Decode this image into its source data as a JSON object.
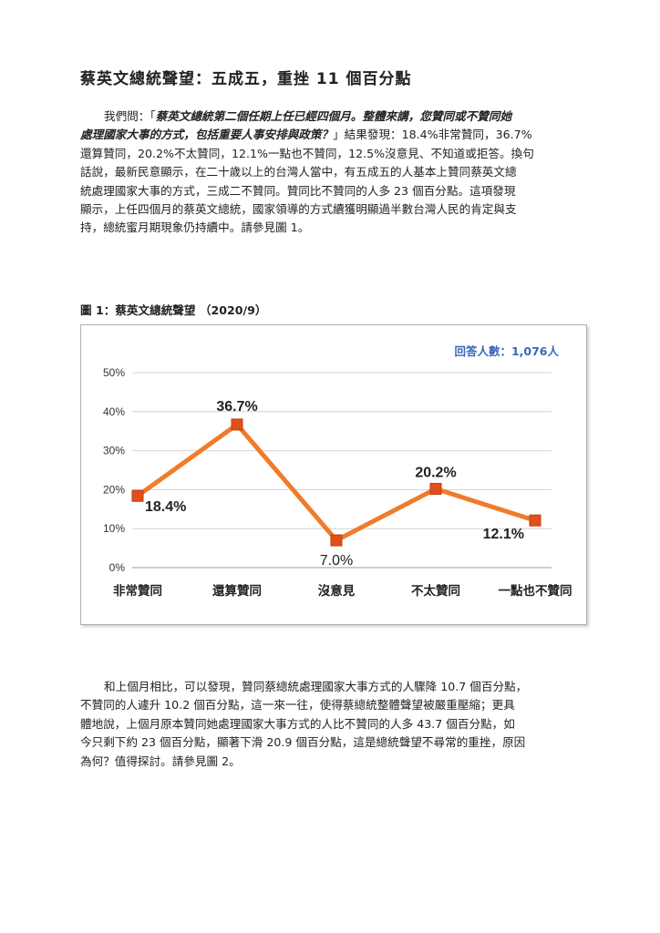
{
  "title": "蔡英文總統聲望：五成五，重挫 11 個百分點",
  "paragraph1": {
    "lead": "我們問：「",
    "question_line1": "蔡英文總統第二個任期上任已經四個月。整體來講，您贊同或不贊同她",
    "question_line2": "處理國家大事的方式，包括重要人事安排與政策？",
    "close_quote": "」結果發現：18.4%非常贊同，36.7%",
    "line3": "還算贊同，20.2%不太贊同，12.1%一點也不贊同，12.5%沒意見、不知道或拒答。換句",
    "line4": "話說，最新民意顯示，在二十歲以上的台灣人當中，有五成五的人基本上贊同蔡英文總",
    "line5": "統處理國家大事的方式，三成二不贊同。贊同比不贊同的人多 23 個百分點。這項發現",
    "line6": "顯示，上任四個月的蔡英文總統，國家領導的方式續獲明顯過半數台灣人民的肯定與支",
    "line7": "持，總統蜜月期現象仍持續中。請參見圖 1。"
  },
  "figure1": {
    "caption": "圖 1：蔡英文總統聲望 （2020/9）",
    "respondents": "回答人數：1,076人"
  },
  "paragraph2": {
    "line1": "和上個月相比，可以發現，贊同蔡總統處理國家大事方式的人驟降 10.7 個百分點，",
    "line2": "不贊同的人遽升 10.2 個百分點，這一來一往，使得蔡總統整體聲望被嚴重壓縮；更具",
    "line3": "體地說，上個月原本贊同她處理國家大事方式的人比不贊同的人多 43.7 個百分點，如",
    "line4": "今只剩下約 23 個百分點，顯著下滑 20.9 個百分點，這是總統聲望不尋常的重挫，原因",
    "line5": "為何？值得探討。請參見圖 2。"
  },
  "chart_data": {
    "type": "line",
    "categories": [
      "非常贊同",
      "還算贊同",
      "沒意見",
      "不太贊同",
      "一點也不贊同"
    ],
    "values": [
      18.4,
      36.7,
      7.0,
      20.2,
      12.1
    ],
    "labels": [
      "18.4%",
      "36.7%",
      "7.0%",
      "20.2%",
      "12.1%"
    ],
    "yticks": [
      "0%",
      "10%",
      "20%",
      "30%",
      "40%",
      "50%"
    ],
    "ylim": [
      0,
      50
    ],
    "grid": true,
    "line_color": "#f07b2a",
    "marker_color": "#e0501a"
  }
}
